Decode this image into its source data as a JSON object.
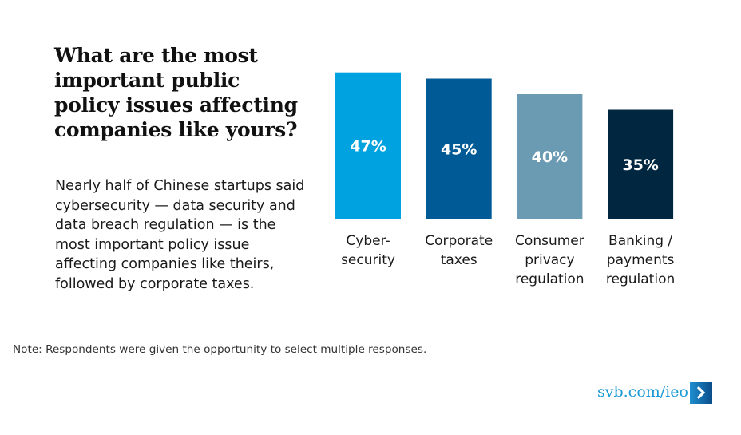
{
  "chart_data": {
    "type": "bar",
    "title": "What are the most important public policy issues affecting companies like yours?",
    "subtitle": "Nearly half of Chinese startups said cybersecurity — data security and data breach regulation — is the most important policy issue affecting companies like theirs, followed by corporate taxes.",
    "categories": [
      [
        "Cyber-",
        "security"
      ],
      [
        "Corporate",
        "taxes"
      ],
      [
        "Consumer",
        "privacy",
        "regulation"
      ],
      [
        "Banking /",
        "payments",
        "regulation"
      ]
    ],
    "values": [
      47,
      45,
      40,
      35
    ],
    "value_labels": [
      "47%",
      "45%",
      "40%",
      "35%"
    ],
    "colors": [
      "#00a3e0",
      "#005a96",
      "#6b9ab3",
      "#002640"
    ],
    "unit": "%",
    "xlabel": "",
    "ylabel": "",
    "ylim": [
      0,
      47
    ],
    "grid": false,
    "legend": "none"
  },
  "note": "Note: Respondents were given the opportunity to select multiple responses.",
  "footer": {
    "link_text": "svb.com/ieo",
    "arrow_icon": "chevron-right-icon"
  }
}
